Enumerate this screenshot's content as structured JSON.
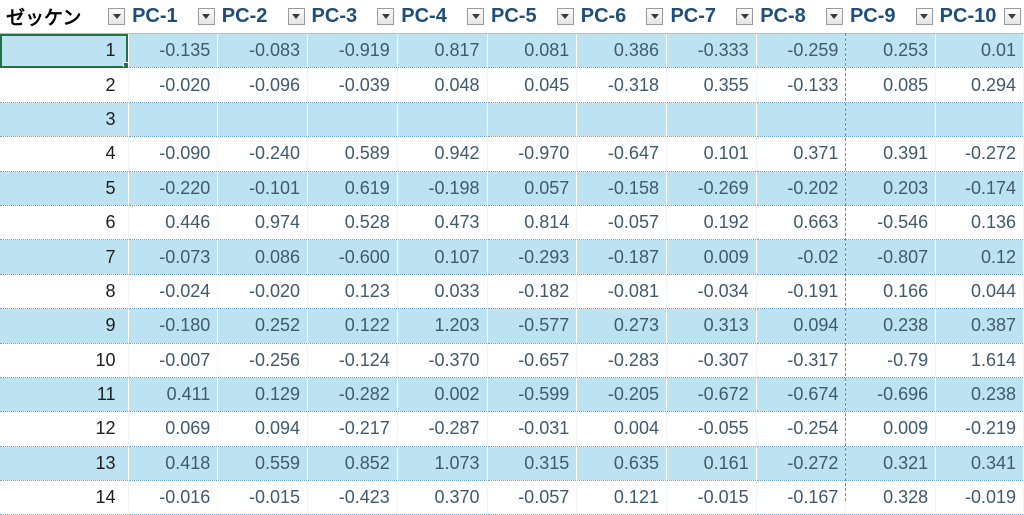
{
  "headers": [
    "ゼッケン",
    "PC-1",
    "PC-2",
    "PC-3",
    "PC-4",
    "PC-5",
    "PC-6",
    "PC-7",
    "PC-8",
    "PC-9",
    "PC-10"
  ],
  "rows": [
    [
      "1",
      "-0.135",
      "-0.083",
      "-0.919",
      "0.817",
      "0.081",
      "0.386",
      "-0.333",
      "-0.259",
      "0.253",
      "0.01"
    ],
    [
      "2",
      "-0.020",
      "-0.096",
      "-0.039",
      "0.048",
      "0.045",
      "-0.318",
      "0.355",
      "-0.133",
      "0.085",
      "0.294"
    ],
    [
      "3",
      "",
      "",
      "",
      "",
      "",
      "",
      "",
      "",
      "",
      ""
    ],
    [
      "4",
      "-0.090",
      "-0.240",
      "0.589",
      "0.942",
      "-0.970",
      "-0.647",
      "0.101",
      "0.371",
      "0.391",
      "-0.272"
    ],
    [
      "5",
      "-0.220",
      "-0.101",
      "0.619",
      "-0.198",
      "0.057",
      "-0.158",
      "-0.269",
      "-0.202",
      "0.203",
      "-0.174"
    ],
    [
      "6",
      "0.446",
      "0.974",
      "0.528",
      "0.473",
      "0.814",
      "-0.057",
      "0.192",
      "0.663",
      "-0.546",
      "0.136"
    ],
    [
      "7",
      "-0.073",
      "0.086",
      "-0.600",
      "0.107",
      "-0.293",
      "-0.187",
      "0.009",
      "-0.02",
      "-0.807",
      "0.12"
    ],
    [
      "8",
      "-0.024",
      "-0.020",
      "0.123",
      "0.033",
      "-0.182",
      "-0.081",
      "-0.034",
      "-0.191",
      "0.166",
      "0.044"
    ],
    [
      "9",
      "-0.180",
      "0.252",
      "0.122",
      "1.203",
      "-0.577",
      "0.273",
      "0.313",
      "0.094",
      "0.238",
      "0.387"
    ],
    [
      "10",
      "-0.007",
      "-0.256",
      "-0.124",
      "-0.370",
      "-0.657",
      "-0.283",
      "-0.307",
      "-0.317",
      "-0.79",
      "1.614"
    ],
    [
      "11",
      "0.411",
      "0.129",
      "-0.282",
      "0.002",
      "-0.599",
      "-0.205",
      "-0.672",
      "-0.674",
      "-0.696",
      "0.238"
    ],
    [
      "12",
      "0.069",
      "0.094",
      "-0.217",
      "-0.287",
      "-0.031",
      "0.004",
      "-0.055",
      "-0.254",
      "0.009",
      "-0.219"
    ],
    [
      "13",
      "0.418",
      "0.559",
      "0.852",
      "1.073",
      "0.315",
      "0.635",
      "0.161",
      "-0.272",
      "0.321",
      "0.341"
    ],
    [
      "14",
      "-0.016",
      "-0.015",
      "-0.423",
      "0.370",
      "-0.057",
      "0.121",
      "-0.015",
      "-0.167",
      "0.328",
      "-0.019"
    ]
  ],
  "colors": {
    "band": "#bde3f3",
    "header_text": "#1f4e79",
    "cell_text": "#3f5a6e",
    "active_cell_border": "#217346"
  },
  "icons": {
    "filter": "dropdown-arrow-icon"
  }
}
